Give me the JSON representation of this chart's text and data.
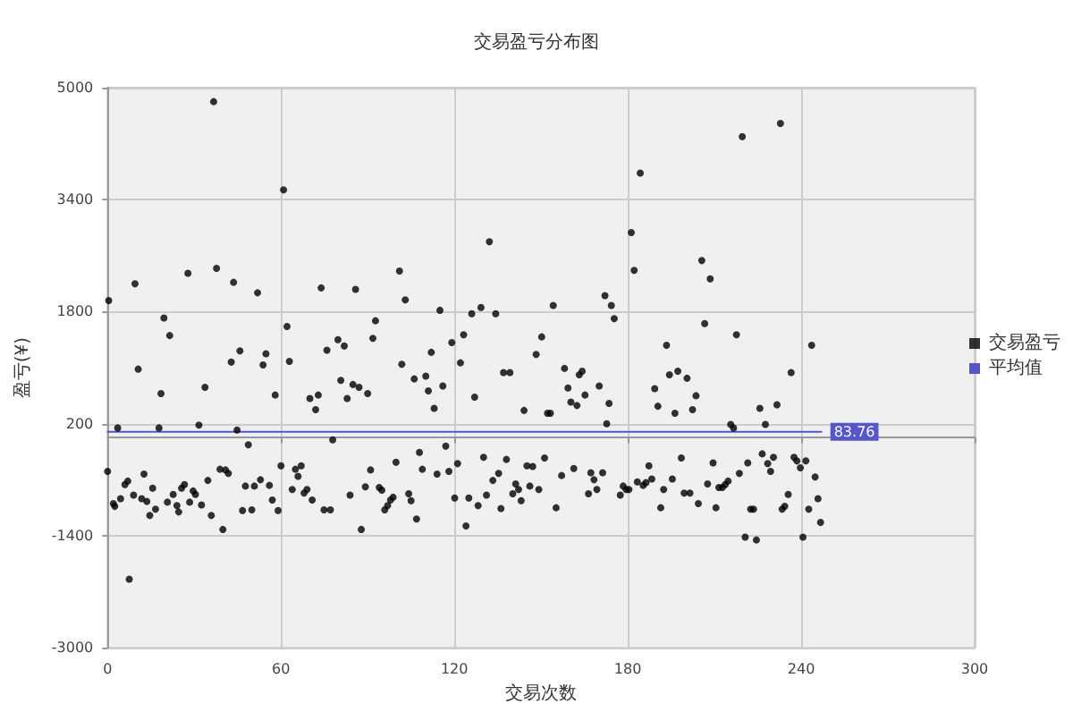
{
  "chart_data": {
    "type": "scatter",
    "title": "交易盈亏分布图",
    "xlabel": "交易次数",
    "ylabel": "盈亏(¥)",
    "xlim": [
      0,
      300
    ],
    "xticks": [
      0,
      60,
      120,
      180,
      240,
      300
    ],
    "ylim": [
      -3000,
      5000
    ],
    "yticks": [
      -3000,
      -1400,
      200,
      1800,
      3400,
      5000
    ],
    "grid": true,
    "legend": "right",
    "series": [
      {
        "name": "交易盈亏",
        "color": "#000000",
        "marker": "circle",
        "x": [
          0,
          0.4,
          2,
          2.5,
          3.5,
          4.5,
          6,
          7,
          7.5,
          9,
          9.5,
          10.6,
          11.8,
          12.6,
          13.6,
          14.6,
          15.6,
          16.6,
          17.8,
          18.5,
          19.5,
          20.7,
          21.5,
          22.7,
          24,
          24.6,
          25.6,
          26.6,
          27.8,
          28.4,
          29.6,
          30.4,
          31.6,
          32.5,
          33.7,
          34.7,
          35.9,
          36.7,
          37.7,
          38.9,
          39.9,
          40.8,
          41.8,
          42.8,
          43.6,
          44.8,
          45.8,
          46.7,
          47.7,
          48.7,
          49.9,
          50.8,
          51.9,
          52.9,
          53.8,
          54.8,
          56,
          57,
          58,
          59,
          60,
          60.9,
          62.1,
          62.9,
          63.9,
          65,
          65.9,
          67,
          68,
          69,
          70,
          70.8,
          72,
          72.9,
          73.9,
          74.9,
          75.9,
          77.1,
          77.9,
          79.7,
          80.7,
          81.9,
          82.9,
          83.9,
          84.9,
          85.8,
          87,
          87.8,
          89.2,
          90,
          91,
          91.8,
          92.7,
          94,
          94.9,
          95.9,
          96.9,
          97.9,
          98.8,
          99.8,
          101,
          101.8,
          103,
          104.2,
          105,
          106.1,
          106.9,
          107.9,
          108.9,
          110.1,
          111,
          112,
          113,
          114,
          115,
          116,
          117,
          118.1,
          119.1,
          120.1,
          121.1,
          122.1,
          123.2,
          124,
          125,
          126,
          127,
          128.2,
          129.2,
          130.1,
          131.1,
          132.1,
          133.3,
          134.3,
          135.3,
          136.1,
          137,
          138,
          139.2,
          140.2,
          141.2,
          142.2,
          143.1,
          144.1,
          145.1,
          146.1,
          147.1,
          148.3,
          149.2,
          150.2,
          151.2,
          152.2,
          153.2,
          154.2,
          155.2,
          157.1,
          158.1,
          159.3,
          160.3,
          161.3,
          162.4,
          163.2,
          164.2,
          165.2,
          166.4,
          167.2,
          168.3,
          169.3,
          170.1,
          171.3,
          172.1,
          172.7,
          173.5,
          174.3,
          175.3,
          177.4,
          178.4,
          179.4,
          180.4,
          181.2,
          182.2,
          183.3,
          184.3,
          185.3,
          186.3,
          187.3,
          188.3,
          189.3,
          190.4,
          191.4,
          192.4,
          193.4,
          194.4,
          195.4,
          196.3,
          197.3,
          198.5,
          199.5,
          200.5,
          201.5,
          202.4,
          203.6,
          204.4,
          205.6,
          206.6,
          207.6,
          208.5,
          209.5,
          210.5,
          211.5,
          212.7,
          213.7,
          214.7,
          215.6,
          216.6,
          217.6,
          218.6,
          219.6,
          220.6,
          221.5,
          222.5,
          223.5,
          224.5,
          225.7,
          226.5,
          227.6,
          228.4,
          229.4,
          230.4,
          231.6,
          232.8,
          233.4,
          234.3,
          235.5,
          236.5,
          237.5,
          238.5,
          239.7,
          240.6,
          241.6,
          242.6,
          243.6,
          244.8,
          245.8,
          246.7
        ],
        "values": [
          -480,
          1960,
          -940,
          -980,
          140,
          -870,
          -670,
          -620,
          -2020,
          -820,
          2200,
          980,
          -870,
          -520,
          -910,
          -1110,
          -720,
          -1020,
          140,
          630,
          1710,
          -920,
          1460,
          -810,
          -970,
          -1060,
          -720,
          -670,
          2350,
          -920,
          -760,
          -810,
          180,
          -960,
          720,
          -610,
          -1110,
          4800,
          2420,
          -450,
          -1310,
          -460,
          -510,
          1080,
          2220,
          110,
          1240,
          -1040,
          -690,
          -100,
          -1030,
          -690,
          2070,
          -600,
          1040,
          1200,
          -680,
          -890,
          610,
          -1040,
          -400,
          3540,
          1590,
          1090,
          -740,
          -450,
          -550,
          -400,
          -790,
          -740,
          560,
          -890,
          400,
          610,
          2140,
          -1030,
          1250,
          -1030,
          -30,
          1400,
          820,
          1310,
          560,
          -820,
          760,
          2120,
          720,
          -1310,
          -700,
          630,
          -460,
          1420,
          1670,
          -710,
          -750,
          -1030,
          -970,
          -890,
          -850,
          -350,
          2380,
          1050,
          1970,
          -800,
          -900,
          840,
          -1160,
          -210,
          -450,
          880,
          670,
          1220,
          420,
          -520,
          1820,
          740,
          -120,
          -480,
          1360,
          -860,
          -370,
          1070,
          1470,
          -1260,
          -860,
          1770,
          580,
          -970,
          1860,
          -280,
          -820,
          2800,
          -610,
          1770,
          -510,
          -1010,
          930,
          -310,
          930,
          -800,
          -660,
          -740,
          -900,
          390,
          -400,
          -690,
          -410,
          1190,
          -740,
          1440,
          -290,
          350,
          350,
          1890,
          -1000,
          -540,
          990,
          710,
          510,
          -440,
          460,
          900,
          950,
          610,
          -800,
          -500,
          -600,
          -740,
          740,
          -500,
          2030,
          200,
          490,
          1890,
          1700,
          -820,
          -690,
          -740,
          -740,
          2930,
          2390,
          -630,
          3780,
          -680,
          -640,
          -400,
          -590,
          700,
          450,
          -1000,
          -740,
          1320,
          900,
          -590,
          350,
          950,
          -290,
          -790,
          850,
          -790,
          400,
          600,
          -940,
          2530,
          1630,
          -660,
          2270,
          -360,
          -1000,
          -710,
          -710,
          -670,
          -620,
          190,
          140,
          1470,
          -510,
          4300,
          -1420,
          -360,
          -1020,
          -1020,
          -1460,
          420,
          -230,
          190,
          -370,
          -480,
          -280,
          470,
          4490,
          -1020,
          -980,
          -810,
          930,
          -280,
          -330,
          -430,
          -1420,
          -330,
          -1020,
          1320,
          -560,
          -870,
          -1210
        ]
      },
      {
        "name": "平均值",
        "color": "#5656c8",
        "type": "line",
        "marker": "none",
        "x": [
          0,
          247
        ],
        "values": [
          83.76,
          83.76
        ],
        "value_labels": [
          null,
          "83.76"
        ]
      }
    ]
  }
}
